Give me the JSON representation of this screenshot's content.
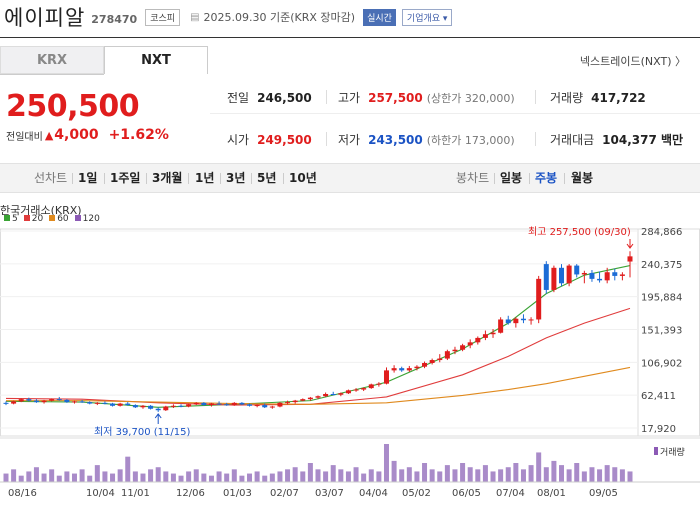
{
  "header": {
    "stock_name": "에이피알",
    "stock_code": "278470",
    "market_badge": "코스피",
    "date_text": "2025.09.30  기준(KRX 장마감)",
    "live_badge": "실시간",
    "company_info_label": "기업개요 ▾"
  },
  "tabs": [
    {
      "label": "KRX",
      "active": false
    },
    {
      "label": "NXT",
      "active": true
    }
  ],
  "nxt_link": "넥스트레이드(NXT) 〉",
  "price": {
    "current": "250,500",
    "change_label": "전일대비",
    "change_arrow": "▲",
    "change_value": "4,000",
    "change_pct": "+1.62%",
    "color_up": "#e01d1d",
    "color_down": "#1b53c4"
  },
  "stats": {
    "prev_close_label": "전일",
    "prev_close": "246,500",
    "high_label": "고가",
    "high": "257,500",
    "upper_limit": "(상한가 320,000)",
    "volume_label": "거래량",
    "volume": "417,722",
    "open_label": "시가",
    "open": "249,500",
    "low_label": "저가",
    "low": "243,500",
    "lower_limit": "(하한가 173,000)",
    "amount_label": "거래대금",
    "amount": "104,377 백만"
  },
  "period_bar": {
    "items": [
      "선차트",
      "1일",
      "1주일",
      "3개월",
      "1년",
      "3년",
      "5년",
      "10년"
    ],
    "right_items": [
      "봉차트",
      "일봉",
      "주봉",
      "월봉"
    ],
    "selected": "주봉"
  },
  "chart_data": {
    "type": "candlestick",
    "source_label": "한국거래소(KRX)",
    "legend": [
      {
        "label": "5",
        "color": "#3aa334"
      },
      {
        "label": "20",
        "color": "#e03c3c"
      },
      {
        "label": "60",
        "color": "#e08a1e"
      },
      {
        "label": "120",
        "color": "#8c5ab5"
      }
    ],
    "y_ticks": [
      "284,866",
      "240,375",
      "195,884",
      "151,393",
      "106,902",
      "62,411",
      "17,920"
    ],
    "y_range": [
      17920,
      284866
    ],
    "x_ticks": [
      "08/16",
      "10/04",
      "11/01",
      "12/06",
      "01/03",
      "02/07",
      "03/07",
      "04/04",
      "05/02",
      "06/05",
      "07/04",
      "08/01",
      "09/05"
    ],
    "high_annotation": "최고 257,500 (09/30)",
    "low_annotation": "최저 39,700 (11/15)",
    "volume_label": "거래량",
    "candles": [
      [
        52000,
        54000,
        49000,
        51000
      ],
      [
        51000,
        55000,
        50000,
        54000
      ],
      [
        54000,
        58000,
        53000,
        57000
      ],
      [
        57000,
        59000,
        54000,
        55000
      ],
      [
        55000,
        57000,
        52000,
        53000
      ],
      [
        53000,
        56000,
        51000,
        55000
      ],
      [
        55000,
        58000,
        54000,
        57000
      ],
      [
        57000,
        60000,
        55000,
        56000
      ],
      [
        56000,
        57000,
        52000,
        53000
      ],
      [
        53000,
        55000,
        51000,
        54000
      ],
      [
        54000,
        56000,
        52000,
        53000
      ],
      [
        53000,
        54000,
        50000,
        51000
      ],
      [
        51000,
        53000,
        49000,
        52000
      ],
      [
        52000,
        54000,
        50000,
        51000
      ],
      [
        51000,
        52000,
        47000,
        48000
      ],
      [
        48000,
        52000,
        47000,
        51000
      ],
      [
        51000,
        53000,
        48000,
        49000
      ],
      [
        49000,
        50000,
        45000,
        46000
      ],
      [
        46000,
        49000,
        44000,
        48000
      ],
      [
        48000,
        49000,
        43000,
        44000
      ],
      [
        44000,
        46000,
        39700,
        42000
      ],
      [
        42000,
        48000,
        41000,
        47000
      ],
      [
        47000,
        50000,
        45000,
        48000
      ],
      [
        48000,
        50000,
        46000,
        47000
      ],
      [
        47000,
        51000,
        46000,
        50000
      ],
      [
        50000,
        53000,
        49000,
        52000
      ],
      [
        52000,
        53000,
        48000,
        49000
      ],
      [
        49000,
        52000,
        47000,
        51000
      ],
      [
        51000,
        54000,
        49000,
        50000
      ],
      [
        50000,
        52000,
        48000,
        49000
      ],
      [
        49000,
        53000,
        48000,
        52000
      ],
      [
        52000,
        53000,
        49000,
        50000
      ],
      [
        50000,
        51000,
        47000,
        48000
      ],
      [
        48000,
        50000,
        46000,
        49000
      ],
      [
        49000,
        51000,
        45000,
        46000
      ],
      [
        46000,
        48000,
        44000,
        47000
      ],
      [
        47000,
        53000,
        46000,
        52000
      ],
      [
        52000,
        55000,
        50000,
        53000
      ],
      [
        53000,
        56000,
        51000,
        55000
      ],
      [
        55000,
        58000,
        54000,
        57000
      ],
      [
        57000,
        60000,
        55000,
        59000
      ],
      [
        59000,
        62000,
        57000,
        61000
      ],
      [
        61000,
        66000,
        60000,
        64000
      ],
      [
        64000,
        67000,
        62000,
        63000
      ],
      [
        63000,
        66000,
        61000,
        65000
      ],
      [
        65000,
        70000,
        64000,
        69000
      ],
      [
        69000,
        72000,
        67000,
        70000
      ],
      [
        70000,
        73000,
        68000,
        72000
      ],
      [
        72000,
        78000,
        71000,
        77000
      ],
      [
        77000,
        80000,
        74000,
        78000
      ],
      [
        78000,
        100000,
        77000,
        96000
      ],
      [
        96000,
        103000,
        93000,
        99000
      ],
      [
        99000,
        101000,
        94000,
        96000
      ],
      [
        96000,
        102000,
        94000,
        99000
      ],
      [
        99000,
        103000,
        96000,
        101000
      ],
      [
        101000,
        108000,
        99000,
        106000
      ],
      [
        106000,
        112000,
        104000,
        110000
      ],
      [
        110000,
        118000,
        107000,
        112000
      ],
      [
        112000,
        124000,
        110000,
        122000
      ],
      [
        122000,
        128000,
        118000,
        124000
      ],
      [
        124000,
        132000,
        122000,
        130000
      ],
      [
        130000,
        138000,
        126000,
        134000
      ],
      [
        134000,
        142000,
        131000,
        140000
      ],
      [
        140000,
        150000,
        137000,
        145000
      ],
      [
        145000,
        152000,
        140000,
        147000
      ],
      [
        147000,
        168000,
        146000,
        165000
      ],
      [
        165000,
        170000,
        158000,
        160000
      ],
      [
        160000,
        168000,
        154000,
        166000
      ],
      [
        166000,
        172000,
        160000,
        164000
      ],
      [
        164000,
        168000,
        158000,
        165000
      ],
      [
        165000,
        224000,
        160000,
        220000
      ],
      [
        240000,
        244000,
        200000,
        205000
      ],
      [
        205000,
        238000,
        202000,
        235000
      ],
      [
        235000,
        240000,
        210000,
        214000
      ],
      [
        214000,
        240000,
        210000,
        238000
      ],
      [
        238000,
        240000,
        222000,
        226000
      ],
      [
        226000,
        231000,
        214000,
        228000
      ],
      [
        228000,
        232000,
        216000,
        220000
      ],
      [
        220000,
        230000,
        215000,
        218000
      ],
      [
        218000,
        235000,
        214000,
        229000
      ],
      [
        229000,
        234000,
        218000,
        224000
      ],
      [
        224000,
        229000,
        218000,
        226000
      ],
      [
        243500,
        257500,
        222000,
        250500
      ]
    ],
    "ma_lines": {
      "5": [
        [
          0,
          54000
        ],
        [
          10,
          53000
        ],
        [
          20,
          46000
        ],
        [
          30,
          50000
        ],
        [
          40,
          55000
        ],
        [
          50,
          80000
        ],
        [
          60,
          125000
        ],
        [
          66,
          160000
        ],
        [
          71,
          200000
        ],
        [
          76,
          225000
        ],
        [
          82,
          238000
        ]
      ],
      "20": [
        [
          0,
          58000
        ],
        [
          10,
          57000
        ],
        [
          20,
          52000
        ],
        [
          30,
          49000
        ],
        [
          40,
          50000
        ],
        [
          50,
          60000
        ],
        [
          60,
          90000
        ],
        [
          66,
          115000
        ],
        [
          71,
          140000
        ],
        [
          76,
          160000
        ],
        [
          82,
          180000
        ]
      ],
      "60": [
        [
          0,
          55000
        ],
        [
          10,
          55000
        ],
        [
          20,
          53000
        ],
        [
          30,
          51000
        ],
        [
          40,
          50000
        ],
        [
          50,
          52000
        ],
        [
          60,
          62000
        ],
        [
          66,
          70000
        ],
        [
          71,
          78000
        ],
        [
          76,
          88000
        ],
        [
          82,
          100000
        ]
      ]
    },
    "volumes": [
      4,
      6,
      3,
      5,
      7,
      4,
      6,
      3,
      5,
      4,
      6,
      3,
      8,
      5,
      4,
      6,
      12,
      5,
      4,
      6,
      7,
      5,
      4,
      3,
      5,
      6,
      4,
      3,
      5,
      4,
      6,
      3,
      4,
      5,
      3,
      4,
      5,
      6,
      7,
      5,
      9,
      6,
      5,
      8,
      6,
      5,
      7,
      4,
      6,
      5,
      18,
      10,
      6,
      7,
      5,
      9,
      6,
      5,
      8,
      6,
      9,
      7,
      6,
      8,
      5,
      6,
      7,
      9,
      6,
      8,
      14,
      7,
      10,
      8,
      6,
      9,
      5,
      7,
      6,
      8,
      7,
      6,
      5
    ]
  }
}
